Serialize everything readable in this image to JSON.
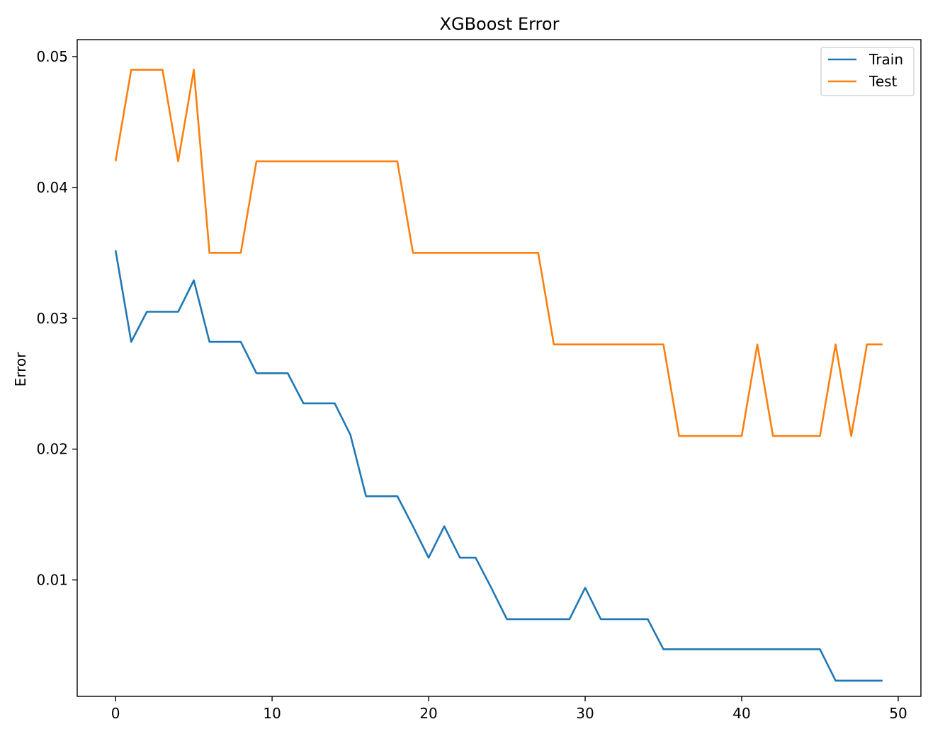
{
  "chart_data": {
    "type": "line",
    "title": "XGBoost Error",
    "xlabel": "",
    "ylabel": "Error",
    "xlim": [
      -2.45,
      51.45
    ],
    "ylim": [
      0.0011,
      0.0513
    ],
    "xticks": [
      0,
      10,
      20,
      30,
      40,
      50
    ],
    "yticks": [
      0.01,
      0.02,
      0.03,
      0.04,
      0.05
    ],
    "ytick_labels": [
      "0.01",
      "0.02",
      "0.03",
      "0.04",
      "0.05"
    ],
    "grid": false,
    "legend": {
      "position": "top-right"
    },
    "x": [
      0,
      1,
      2,
      3,
      4,
      5,
      6,
      7,
      8,
      9,
      10,
      11,
      12,
      13,
      14,
      15,
      16,
      17,
      18,
      19,
      20,
      21,
      22,
      23,
      24,
      25,
      26,
      27,
      28,
      29,
      30,
      31,
      32,
      33,
      34,
      35,
      36,
      37,
      38,
      39,
      40,
      41,
      42,
      43,
      44,
      45,
      46,
      47,
      48,
      49
    ],
    "series": [
      {
        "name": "Train",
        "color": "#1f77b4",
        "values": [
          0.0352,
          0.0282,
          0.0305,
          0.0305,
          0.0305,
          0.0329,
          0.0282,
          0.0282,
          0.0282,
          0.0258,
          0.0258,
          0.0258,
          0.0235,
          0.0235,
          0.0235,
          0.0211,
          0.0164,
          0.0164,
          0.0164,
          0.0141,
          0.0117,
          0.0141,
          0.0117,
          0.0117,
          0.0094,
          0.007,
          0.007,
          0.007,
          0.007,
          0.007,
          0.0094,
          0.007,
          0.007,
          0.007,
          0.007,
          0.0047,
          0.0047,
          0.0047,
          0.0047,
          0.0047,
          0.0047,
          0.0047,
          0.0047,
          0.0047,
          0.0047,
          0.0047,
          0.0023,
          0.0023,
          0.0023,
          0.0023
        ]
      },
      {
        "name": "Test",
        "color": "#ff7f0e",
        "values": [
          0.042,
          0.049,
          0.049,
          0.049,
          0.042,
          0.049,
          0.035,
          0.035,
          0.035,
          0.042,
          0.042,
          0.042,
          0.042,
          0.042,
          0.042,
          0.042,
          0.042,
          0.042,
          0.042,
          0.035,
          0.035,
          0.035,
          0.035,
          0.035,
          0.035,
          0.035,
          0.035,
          0.035,
          0.028,
          0.028,
          0.028,
          0.028,
          0.028,
          0.028,
          0.028,
          0.028,
          0.021,
          0.021,
          0.021,
          0.021,
          0.021,
          0.028,
          0.021,
          0.021,
          0.021,
          0.021,
          0.028,
          0.021,
          0.028,
          0.028
        ]
      }
    ]
  }
}
